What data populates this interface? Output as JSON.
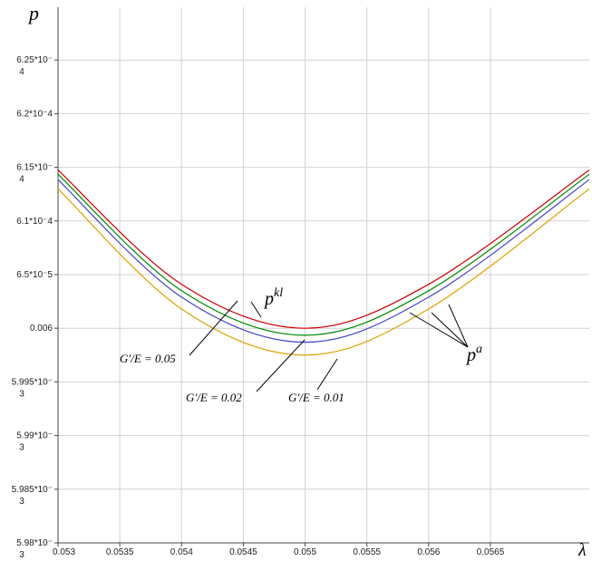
{
  "chart_data": {
    "type": "line",
    "title": "",
    "xlabel": "λ",
    "ylabel": "p",
    "xlim": [
      0.053,
      0.0573
    ],
    "x_ticks": [
      {
        "value": 0.053,
        "label": "0.053"
      },
      {
        "value": 0.0535,
        "label": "0.0535"
      },
      {
        "value": 0.054,
        "label": "0.054"
      },
      {
        "value": 0.0545,
        "label": "0.0545"
      },
      {
        "value": 0.055,
        "label": "0.055"
      },
      {
        "value": 0.0555,
        "label": "0.0555"
      },
      {
        "value": 0.056,
        "label": "0.056"
      },
      {
        "value": 0.0565,
        "label": "0.0565"
      }
    ],
    "y_ticks": [
      {
        "index": 0,
        "label": "5.98*10⁻",
        "exp": "3"
      },
      {
        "index": 1,
        "label": "5.985*10⁻",
        "exp": "3"
      },
      {
        "index": 2,
        "label": "5.99*10⁻",
        "exp": "3"
      },
      {
        "index": 3,
        "label": "5.995*10⁻",
        "exp": "3"
      },
      {
        "index": 4,
        "label": "0.006",
        "exp": ""
      },
      {
        "index": 5,
        "label": "6.5*10⁻5",
        "exp": ""
      },
      {
        "index": 6,
        "label": "6.1*10⁻4",
        "exp": ""
      },
      {
        "index": 7,
        "label": "6.15*10⁻",
        "exp": "4"
      },
      {
        "index": 8,
        "label": "6.2*10⁻4",
        "exp": ""
      },
      {
        "index": 9,
        "label": "6.25*10⁻",
        "exp": "4"
      }
    ],
    "grid": true,
    "series": [
      {
        "color": "#cc0000",
        "x": [
          0.053,
          0.054,
          0.055,
          0.056,
          0.0573
        ],
        "y_tick_index": [
          6.95,
          4.82,
          4.0,
          4.82,
          6.95
        ]
      },
      {
        "color": "#008800",
        "x": [
          0.053,
          0.054,
          0.055,
          0.056,
          0.0573
        ],
        "y_tick_index": [
          6.87,
          4.7,
          3.87,
          4.7,
          6.87
        ]
      },
      {
        "color": "#4444cc",
        "x": [
          0.053,
          0.054,
          0.055,
          0.056,
          0.0573
        ],
        "y_tick_index": [
          6.77,
          4.58,
          3.74,
          4.58,
          6.77
        ]
      },
      {
        "color": "#e0a000",
        "x": [
          0.053,
          0.054,
          0.055,
          0.056,
          0.0573
        ],
        "y_tick_index": [
          6.6,
          4.36,
          3.5,
          4.36,
          6.6
        ]
      }
    ],
    "annotations": {
      "pkl_base": "p",
      "pkl_sup": "kl",
      "pa_base": "p",
      "pa_sup": "a",
      "g005": "G′/E = 0.05",
      "g002": "G′/E = 0.02",
      "g001": "G′/E = 0.01"
    }
  }
}
